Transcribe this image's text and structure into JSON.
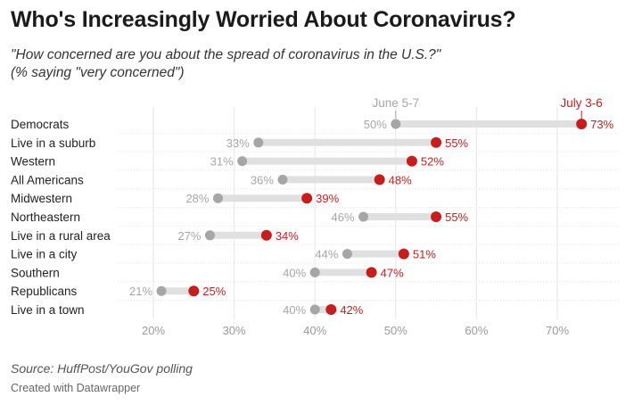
{
  "header": {
    "title": "Who's Increasingly Worried About Coronavirus?",
    "subtitle_line1": "\"How concerned are you about the spread of coronavirus in the U.S.?\"",
    "subtitle_line2": "(% saying \"very concerned\")"
  },
  "footer": {
    "source": "Source: HuffPost/YouGov polling",
    "credit": "Created with Datawrapper"
  },
  "chart_data": {
    "type": "dot-range",
    "categories": [
      "Democrats",
      "Live in a suburb",
      "Western",
      "All Americans",
      "Midwestern",
      "Northeastern",
      "Live in a rural area",
      "Live in a city",
      "Southern",
      "Republicans",
      "Live in a town"
    ],
    "series": [
      {
        "name": "June 5-7",
        "color": "#a6a6a6",
        "values": [
          50,
          33,
          31,
          36,
          28,
          46,
          27,
          44,
          40,
          21,
          40
        ]
      },
      {
        "name": "July 3-6",
        "color": "#c71e1d",
        "values": [
          73,
          55,
          52,
          48,
          39,
          55,
          34,
          51,
          47,
          25,
          42
        ]
      }
    ],
    "x_ticks": [
      20,
      30,
      40,
      50,
      60,
      70
    ],
    "x_tick_labels": [
      "20%",
      "30%",
      "40%",
      "50%",
      "60%",
      "70%"
    ],
    "xlim": [
      20,
      70
    ],
    "value_suffix": "%",
    "grid": true
  }
}
